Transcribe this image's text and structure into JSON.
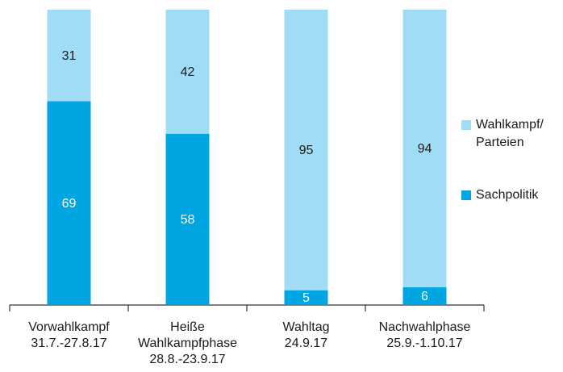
{
  "chart_data": {
    "type": "stacked_bar",
    "categories": [
      [
        "Vorwahlkampf",
        "31.7.-27.8.17"
      ],
      [
        "Heiße",
        "Wahlkampfphase",
        "28.8.-23.9.17"
      ],
      [
        "Wahltag",
        "24.9.17"
      ],
      [
        "Nachwahlphase",
        "25.9.-1.10.17"
      ]
    ],
    "series": [
      {
        "name": [
          "Sachpolitik"
        ],
        "color": "#00a6e2",
        "label_color": "#ffffff",
        "values": [
          69,
          58,
          5,
          6
        ]
      },
      {
        "name": [
          "Wahlkampf/",
          "Parteien"
        ],
        "color": "#a0dcf5",
        "label_color": "#1a1a1a",
        "values": [
          31,
          42,
          95,
          94
        ]
      }
    ],
    "ylim": [
      0,
      100
    ],
    "legend": "right"
  }
}
